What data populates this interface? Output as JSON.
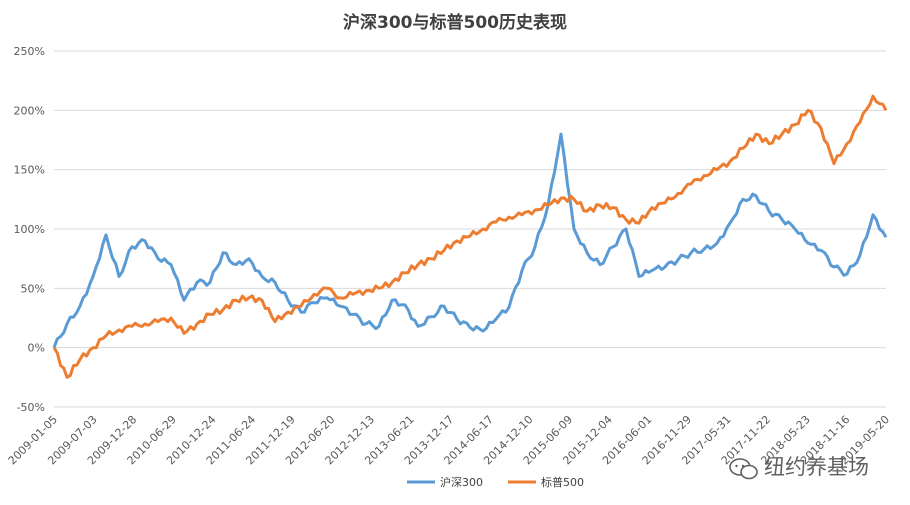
{
  "watermark": {
    "text": "纽约养基场",
    "icon": "wechat-icon"
  },
  "chart_data": {
    "type": "line",
    "title": "沪深300与标普500历史表现",
    "xlabel": "",
    "ylabel": "",
    "ylim": [
      -0.5,
      2.5
    ],
    "y_tick_labels": [
      "-50%",
      "0%",
      "50%",
      "100%",
      "150%",
      "200%",
      "250%"
    ],
    "grid": "horizontal",
    "legend_position": "bottom",
    "x_tick_labels": [
      "2009-01-05",
      "2009-07-03",
      "2009-12-28",
      "2010-06-29",
      "2010-12-24",
      "2011-06-24",
      "2011-12-19",
      "2012-06-20",
      "2012-12-13",
      "2013-06-21",
      "2013-12-17",
      "2014-06-17",
      "2014-12-10",
      "2015-06-09",
      "2015-12-04",
      "2016-06-01",
      "2016-11-29",
      "2017-05-31",
      "2017-11-22",
      "2018-05-23",
      "2018-11-16",
      "2019-05-20"
    ],
    "x": [
      "2009-01",
      "2009-02",
      "2009-04",
      "2009-06",
      "2009-08",
      "2009-09",
      "2009-11",
      "2009-12",
      "2010-02",
      "2010-04",
      "2010-06",
      "2010-07",
      "2010-09",
      "2010-11",
      "2011-01",
      "2011-04",
      "2011-06",
      "2011-08",
      "2011-10",
      "2011-12",
      "2012-02",
      "2012-04",
      "2012-06",
      "2012-08",
      "2012-10",
      "2012-12",
      "2013-02",
      "2013-04",
      "2013-06",
      "2013-08",
      "2013-10",
      "2013-12",
      "2014-03",
      "2014-06",
      "2014-09",
      "2014-11",
      "2015-01",
      "2015-03",
      "2015-05",
      "2015-06",
      "2015-07",
      "2015-08",
      "2015-10",
      "2015-12",
      "2016-01",
      "2016-02",
      "2016-04",
      "2016-06",
      "2016-09",
      "2016-12",
      "2017-03",
      "2017-06",
      "2017-09",
      "2017-12",
      "2018-01",
      "2018-02",
      "2018-04",
      "2018-06",
      "2018-08",
      "2018-10",
      "2018-12",
      "2019-01",
      "2019-03",
      "2019-04",
      "2019-05"
    ],
    "series": [
      {
        "name": "沪深300",
        "color": "#5B9BD5",
        "values": [
          0.0,
          0.2,
          0.35,
          0.6,
          0.95,
          0.6,
          0.85,
          0.9,
          0.75,
          0.7,
          0.4,
          0.55,
          0.55,
          0.8,
          0.7,
          0.75,
          0.6,
          0.55,
          0.4,
          0.3,
          0.38,
          0.42,
          0.35,
          0.28,
          0.2,
          0.18,
          0.4,
          0.36,
          0.18,
          0.26,
          0.35,
          0.24,
          0.17,
          0.14,
          0.24,
          0.34,
          0.65,
          0.85,
          1.2,
          1.8,
          1.0,
          0.8,
          0.7,
          0.85,
          1.0,
          0.6,
          0.65,
          0.68,
          0.74,
          0.8,
          0.83,
          0.88,
          1.05,
          1.25,
          1.28,
          1.15,
          1.08,
          1.0,
          0.88,
          0.82,
          0.68,
          0.62,
          0.78,
          1.12,
          0.93
        ]
      },
      {
        "name": "标普500",
        "color": "#ED7D31",
        "values": [
          0.0,
          -0.25,
          -0.1,
          0.0,
          0.1,
          0.15,
          0.18,
          0.2,
          0.22,
          0.25,
          0.12,
          0.2,
          0.28,
          0.32,
          0.4,
          0.42,
          0.4,
          0.22,
          0.3,
          0.35,
          0.45,
          0.5,
          0.42,
          0.45,
          0.48,
          0.5,
          0.55,
          0.63,
          0.7,
          0.75,
          0.82,
          0.9,
          0.94,
          1.0,
          1.06,
          1.1,
          1.12,
          1.16,
          1.2,
          1.26,
          1.25,
          1.15,
          1.2,
          1.18,
          1.08,
          1.05,
          1.18,
          1.22,
          1.3,
          1.38,
          1.45,
          1.5,
          1.57,
          1.68,
          1.8,
          1.72,
          1.8,
          1.88,
          2.0,
          1.85,
          1.55,
          1.72,
          1.9,
          2.12,
          2.0
        ]
      }
    ]
  }
}
